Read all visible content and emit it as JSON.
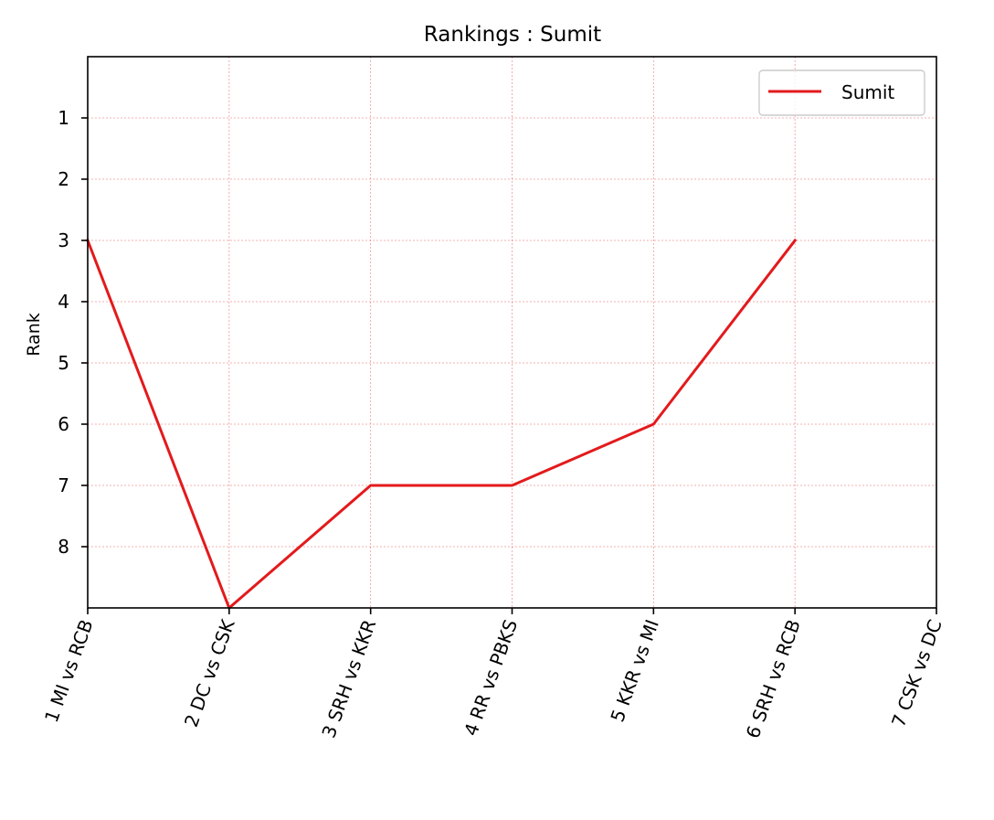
{
  "chart_data": {
    "type": "line",
    "title": "Rankings : Sumit",
    "xlabel": "",
    "ylabel": "Rank",
    "categories": [
      "1 MI vs RCB",
      "2 DC vs CSK",
      "3 SRH vs KKR",
      "4 RR vs PBKS",
      "5 KKR vs MI",
      "6 SRH vs RCB",
      "7 CSK vs DC"
    ],
    "series": [
      {
        "name": "Sumit",
        "values": [
          3,
          9,
          7,
          7,
          6,
          3,
          null
        ],
        "color": "#e31a1c"
      }
    ],
    "y_ticks": [
      1,
      2,
      3,
      4,
      5,
      6,
      7,
      8
    ],
    "ylim": [
      9,
      0
    ],
    "y_inverted": true,
    "grid": true,
    "grid_color": "#e31a1c",
    "legend_position": "top-right"
  }
}
